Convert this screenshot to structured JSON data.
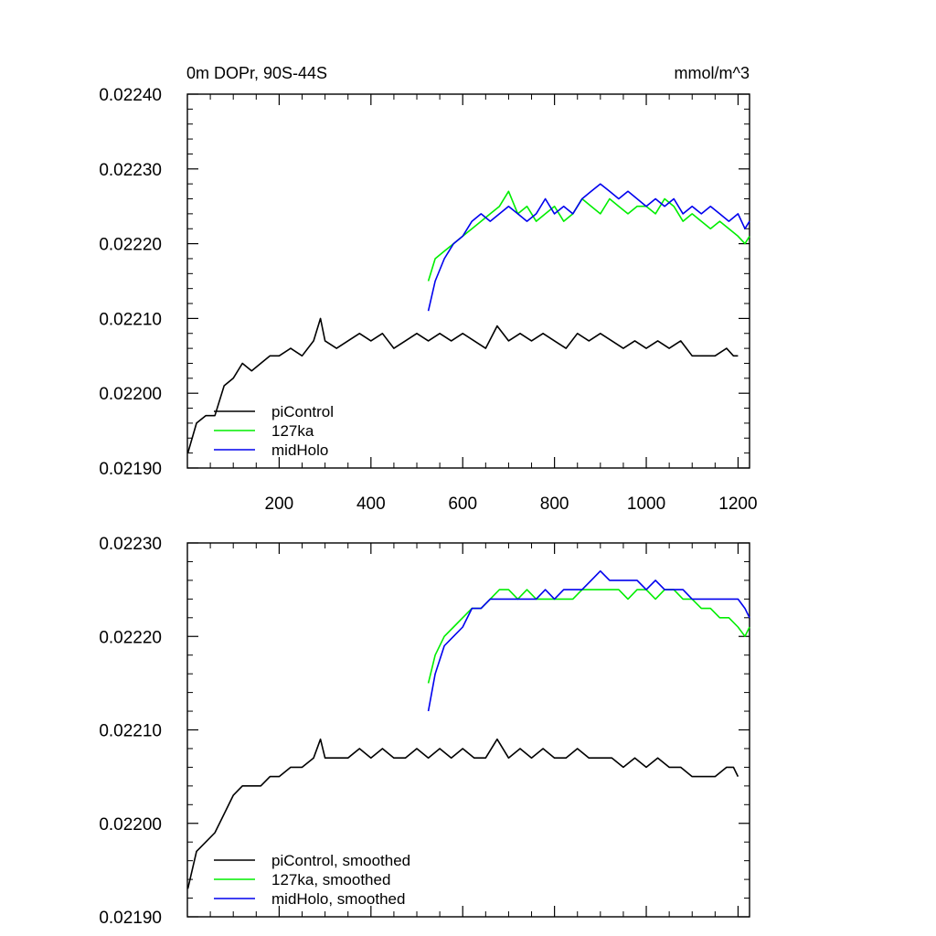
{
  "colors": {
    "piControl": "#000000",
    "127ka": "#00ee00",
    "midHolo": "#0000ee",
    "axis": "#000000",
    "background": "#ffffff"
  },
  "chart_data": [
    {
      "type": "line",
      "title": "0m DOPr, 90S-44S",
      "units": "mmol/m^3",
      "xlim": [
        0,
        1225
      ],
      "ylim": [
        0.0219,
        0.0224
      ],
      "x_ticks": [
        200,
        400,
        600,
        800,
        1000,
        1200
      ],
      "x_tick_labels": [
        "200",
        "400",
        "600",
        "800",
        "1000",
        "1200"
      ],
      "x_labels_shown": true,
      "y_ticks": [
        0.0219,
        0.022,
        0.0221,
        0.0222,
        0.0223,
        0.0224
      ],
      "y_tick_labels": [
        "0.02190",
        "0.02200",
        "0.02210",
        "0.02220",
        "0.02230",
        "0.02240"
      ],
      "grid": false,
      "legend_position": "bottom-left",
      "series": [
        {
          "name": "piControl",
          "x": [
            1,
            20,
            40,
            60,
            80,
            100,
            120,
            140,
            160,
            180,
            200,
            225,
            250,
            275,
            290,
            300,
            325,
            350,
            375,
            400,
            425,
            450,
            475,
            500,
            525,
            550,
            575,
            600,
            625,
            650,
            675,
            700,
            725,
            750,
            775,
            800,
            825,
            850,
            875,
            900,
            925,
            950,
            975,
            1000,
            1025,
            1050,
            1075,
            1100,
            1125,
            1150,
            1175,
            1190,
            1200
          ],
          "y": [
            0.02192,
            0.02196,
            0.02197,
            0.02197,
            0.02201,
            0.02202,
            0.02204,
            0.02203,
            0.02204,
            0.02205,
            0.02205,
            0.02206,
            0.02205,
            0.02207,
            0.0221,
            0.02207,
            0.02206,
            0.02207,
            0.02208,
            0.02207,
            0.02208,
            0.02206,
            0.02207,
            0.02208,
            0.02207,
            0.02208,
            0.02207,
            0.02208,
            0.02207,
            0.02206,
            0.02209,
            0.02207,
            0.02208,
            0.02207,
            0.02208,
            0.02207,
            0.02206,
            0.02208,
            0.02207,
            0.02208,
            0.02207,
            0.02206,
            0.02207,
            0.02206,
            0.02207,
            0.02206,
            0.02207,
            0.02205,
            0.02205,
            0.02205,
            0.02206,
            0.02205,
            0.02205
          ]
        },
        {
          "name": "127ka",
          "x": [
            525,
            540,
            560,
            580,
            600,
            620,
            640,
            660,
            680,
            700,
            720,
            740,
            760,
            780,
            800,
            820,
            840,
            860,
            880,
            900,
            920,
            940,
            960,
            980,
            1000,
            1020,
            1040,
            1060,
            1080,
            1100,
            1120,
            1140,
            1160,
            1180,
            1200,
            1215,
            1225
          ],
          "y": [
            0.02215,
            0.02218,
            0.02219,
            0.0222,
            0.02221,
            0.02222,
            0.02223,
            0.02224,
            0.02225,
            0.02227,
            0.02224,
            0.02225,
            0.02223,
            0.02224,
            0.02225,
            0.02223,
            0.02224,
            0.02226,
            0.02225,
            0.02224,
            0.02226,
            0.02225,
            0.02224,
            0.02225,
            0.02225,
            0.02224,
            0.02226,
            0.02225,
            0.02223,
            0.02224,
            0.02223,
            0.02222,
            0.02223,
            0.02222,
            0.02221,
            0.0222,
            0.02221
          ]
        },
        {
          "name": "midHolo",
          "x": [
            525,
            540,
            560,
            580,
            600,
            620,
            640,
            660,
            680,
            700,
            720,
            740,
            760,
            780,
            800,
            820,
            840,
            860,
            880,
            900,
            920,
            940,
            960,
            980,
            1000,
            1020,
            1040,
            1060,
            1080,
            1100,
            1120,
            1140,
            1160,
            1180,
            1200,
            1215,
            1225
          ],
          "y": [
            0.02211,
            0.02215,
            0.02218,
            0.0222,
            0.02221,
            0.02223,
            0.02224,
            0.02223,
            0.02224,
            0.02225,
            0.02224,
            0.02223,
            0.02224,
            0.02226,
            0.02224,
            0.02225,
            0.02224,
            0.02226,
            0.02227,
            0.02228,
            0.02227,
            0.02226,
            0.02227,
            0.02226,
            0.02225,
            0.02226,
            0.02225,
            0.02226,
            0.02224,
            0.02225,
            0.02224,
            0.02225,
            0.02224,
            0.02223,
            0.02224,
            0.02222,
            0.02223
          ]
        }
      ]
    },
    {
      "type": "line",
      "xlim": [
        0,
        1225
      ],
      "ylim": [
        0.0219,
        0.0223
      ],
      "x_ticks": [
        200,
        400,
        600,
        800,
        1000,
        1200
      ],
      "x_tick_labels": [],
      "x_labels_shown": false,
      "y_ticks": [
        0.0219,
        0.022,
        0.0221,
        0.0222,
        0.0223
      ],
      "y_tick_labels": [
        "0.02190",
        "0.02200",
        "0.02210",
        "0.02220",
        "0.02230"
      ],
      "grid": false,
      "legend_position": "bottom-left",
      "series": [
        {
          "name": "piControl, smoothed",
          "x": [
            1,
            20,
            40,
            60,
            80,
            100,
            120,
            140,
            160,
            180,
            200,
            225,
            250,
            275,
            290,
            300,
            325,
            350,
            375,
            400,
            425,
            450,
            475,
            500,
            525,
            550,
            575,
            600,
            625,
            650,
            675,
            700,
            725,
            750,
            775,
            800,
            825,
            850,
            875,
            900,
            925,
            950,
            975,
            1000,
            1025,
            1050,
            1075,
            1100,
            1125,
            1150,
            1175,
            1190,
            1200
          ],
          "y": [
            0.02193,
            0.02197,
            0.02198,
            0.02199,
            0.02201,
            0.02203,
            0.02204,
            0.02204,
            0.02204,
            0.02205,
            0.02205,
            0.02206,
            0.02206,
            0.02207,
            0.02209,
            0.02207,
            0.02207,
            0.02207,
            0.02208,
            0.02207,
            0.02208,
            0.02207,
            0.02207,
            0.02208,
            0.02207,
            0.02208,
            0.02207,
            0.02208,
            0.02207,
            0.02207,
            0.02209,
            0.02207,
            0.02208,
            0.02207,
            0.02208,
            0.02207,
            0.02207,
            0.02208,
            0.02207,
            0.02207,
            0.02207,
            0.02206,
            0.02207,
            0.02206,
            0.02207,
            0.02206,
            0.02206,
            0.02205,
            0.02205,
            0.02205,
            0.02206,
            0.02206,
            0.02205
          ]
        },
        {
          "name": "127ka, smoothed",
          "x": [
            525,
            540,
            560,
            580,
            600,
            620,
            640,
            660,
            680,
            700,
            720,
            740,
            760,
            780,
            800,
            820,
            840,
            860,
            880,
            900,
            920,
            940,
            960,
            980,
            1000,
            1020,
            1040,
            1060,
            1080,
            1100,
            1120,
            1140,
            1160,
            1180,
            1200,
            1215,
            1225
          ],
          "y": [
            0.02215,
            0.02218,
            0.0222,
            0.02221,
            0.02222,
            0.02223,
            0.02223,
            0.02224,
            0.02225,
            0.02225,
            0.02224,
            0.02225,
            0.02224,
            0.02224,
            0.02224,
            0.02224,
            0.02224,
            0.02225,
            0.02225,
            0.02225,
            0.02225,
            0.02225,
            0.02224,
            0.02225,
            0.02225,
            0.02224,
            0.02225,
            0.02225,
            0.02224,
            0.02224,
            0.02223,
            0.02223,
            0.02222,
            0.02222,
            0.02221,
            0.0222,
            0.02221
          ]
        },
        {
          "name": "midHolo, smoothed",
          "x": [
            525,
            540,
            560,
            580,
            600,
            620,
            640,
            660,
            680,
            700,
            720,
            740,
            760,
            780,
            800,
            820,
            840,
            860,
            880,
            900,
            920,
            940,
            960,
            980,
            1000,
            1020,
            1040,
            1060,
            1080,
            1100,
            1120,
            1140,
            1160,
            1180,
            1200,
            1215,
            1225
          ],
          "y": [
            0.02212,
            0.02216,
            0.02219,
            0.0222,
            0.02221,
            0.02223,
            0.02223,
            0.02224,
            0.02224,
            0.02224,
            0.02224,
            0.02224,
            0.02224,
            0.02225,
            0.02224,
            0.02225,
            0.02225,
            0.02225,
            0.02226,
            0.02227,
            0.02226,
            0.02226,
            0.02226,
            0.02226,
            0.02225,
            0.02226,
            0.02225,
            0.02225,
            0.02225,
            0.02224,
            0.02224,
            0.02224,
            0.02224,
            0.02224,
            0.02224,
            0.02223,
            0.02222
          ]
        }
      ]
    }
  ]
}
